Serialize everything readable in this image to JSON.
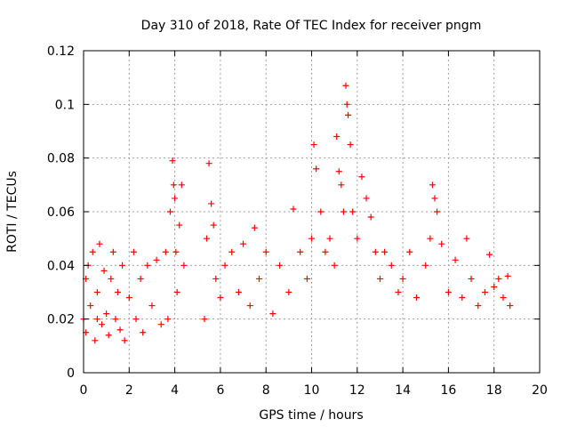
{
  "chart_data": {
    "type": "scatter",
    "title": "Day 310 of 2018, Rate Of TEC Index for receiver pngm",
    "xlabel": "GPS time / hours",
    "ylabel": "ROTI / TECUs",
    "xlim": [
      0,
      20
    ],
    "ylim": [
      0,
      0.12
    ],
    "xticks": [
      0,
      2,
      4,
      6,
      8,
      10,
      12,
      14,
      16,
      18,
      20
    ],
    "xtick_labels": [
      "0",
      "2",
      "4",
      "6",
      "8",
      "10",
      "12",
      "14",
      "16",
      "18",
      "20"
    ],
    "yticks": [
      0,
      0.02,
      0.04,
      0.06,
      0.08,
      0.1,
      0.12
    ],
    "ytick_labels": [
      "0",
      "0.02",
      "0.04",
      "0.06",
      "0.08",
      "0.1",
      "0.12"
    ],
    "grid": true,
    "marker": "plus",
    "series": [
      {
        "name": "ROTI",
        "color": "#ff0000",
        "x": [
          0.0,
          0.1,
          0.1,
          0.2,
          0.3,
          0.4,
          0.5,
          0.6,
          0.6,
          0.7,
          0.8,
          0.9,
          1.0,
          1.1,
          1.2,
          1.3,
          1.4,
          1.5,
          1.6,
          1.7,
          1.8,
          2.0,
          2.2,
          2.3,
          2.5,
          2.6,
          2.8,
          3.0,
          3.2,
          3.4,
          3.6,
          3.7,
          3.8,
          3.9,
          3.95,
          4.0,
          4.05,
          4.1,
          4.2,
          4.3,
          4.4,
          5.3,
          5.4,
          5.5,
          5.6,
          5.7,
          5.8,
          6.0,
          6.2,
          6.5,
          6.8,
          7.0,
          7.3,
          7.5,
          7.7,
          8.0,
          8.3,
          8.6,
          9.0,
          9.2,
          9.5,
          9.8,
          10.0,
          10.1,
          10.2,
          10.4,
          10.6,
          10.8,
          11.0,
          11.1,
          11.2,
          11.3,
          11.4,
          11.5,
          11.55,
          11.6,
          11.7,
          11.8,
          12.0,
          12.2,
          12.4,
          12.6,
          12.8,
          13.0,
          13.2,
          13.5,
          13.8,
          14.0,
          14.3,
          14.6,
          15.0,
          15.2,
          15.3,
          15.4,
          15.5,
          15.7,
          16.0,
          16.3,
          16.6,
          16.8,
          17.0,
          17.3,
          17.6,
          17.8,
          18.0,
          18.2,
          18.4,
          18.6,
          18.7
        ],
        "y": [
          0.02,
          0.035,
          0.015,
          0.04,
          0.025,
          0.045,
          0.012,
          0.03,
          0.02,
          0.048,
          0.018,
          0.038,
          0.022,
          0.014,
          0.035,
          0.045,
          0.02,
          0.03,
          0.016,
          0.04,
          0.012,
          0.028,
          0.045,
          0.02,
          0.035,
          0.015,
          0.04,
          0.025,
          0.042,
          0.018,
          0.045,
          0.02,
          0.06,
          0.079,
          0.07,
          0.065,
          0.045,
          0.03,
          0.055,
          0.07,
          0.04,
          0.02,
          0.05,
          0.078,
          0.063,
          0.055,
          0.035,
          0.028,
          0.04,
          0.045,
          0.03,
          0.048,
          0.025,
          0.054,
          0.035,
          0.045,
          0.022,
          0.04,
          0.03,
          0.061,
          0.045,
          0.035,
          0.05,
          0.085,
          0.076,
          0.06,
          0.045,
          0.05,
          0.04,
          0.088,
          0.075,
          0.07,
          0.06,
          0.107,
          0.1,
          0.096,
          0.085,
          0.06,
          0.05,
          0.073,
          0.065,
          0.058,
          0.045,
          0.035,
          0.045,
          0.04,
          0.03,
          0.035,
          0.045,
          0.028,
          0.04,
          0.05,
          0.07,
          0.065,
          0.06,
          0.048,
          0.03,
          0.042,
          0.028,
          0.05,
          0.035,
          0.025,
          0.03,
          0.044,
          0.032,
          0.035,
          0.028,
          0.036,
          0.025
        ]
      }
    ]
  }
}
